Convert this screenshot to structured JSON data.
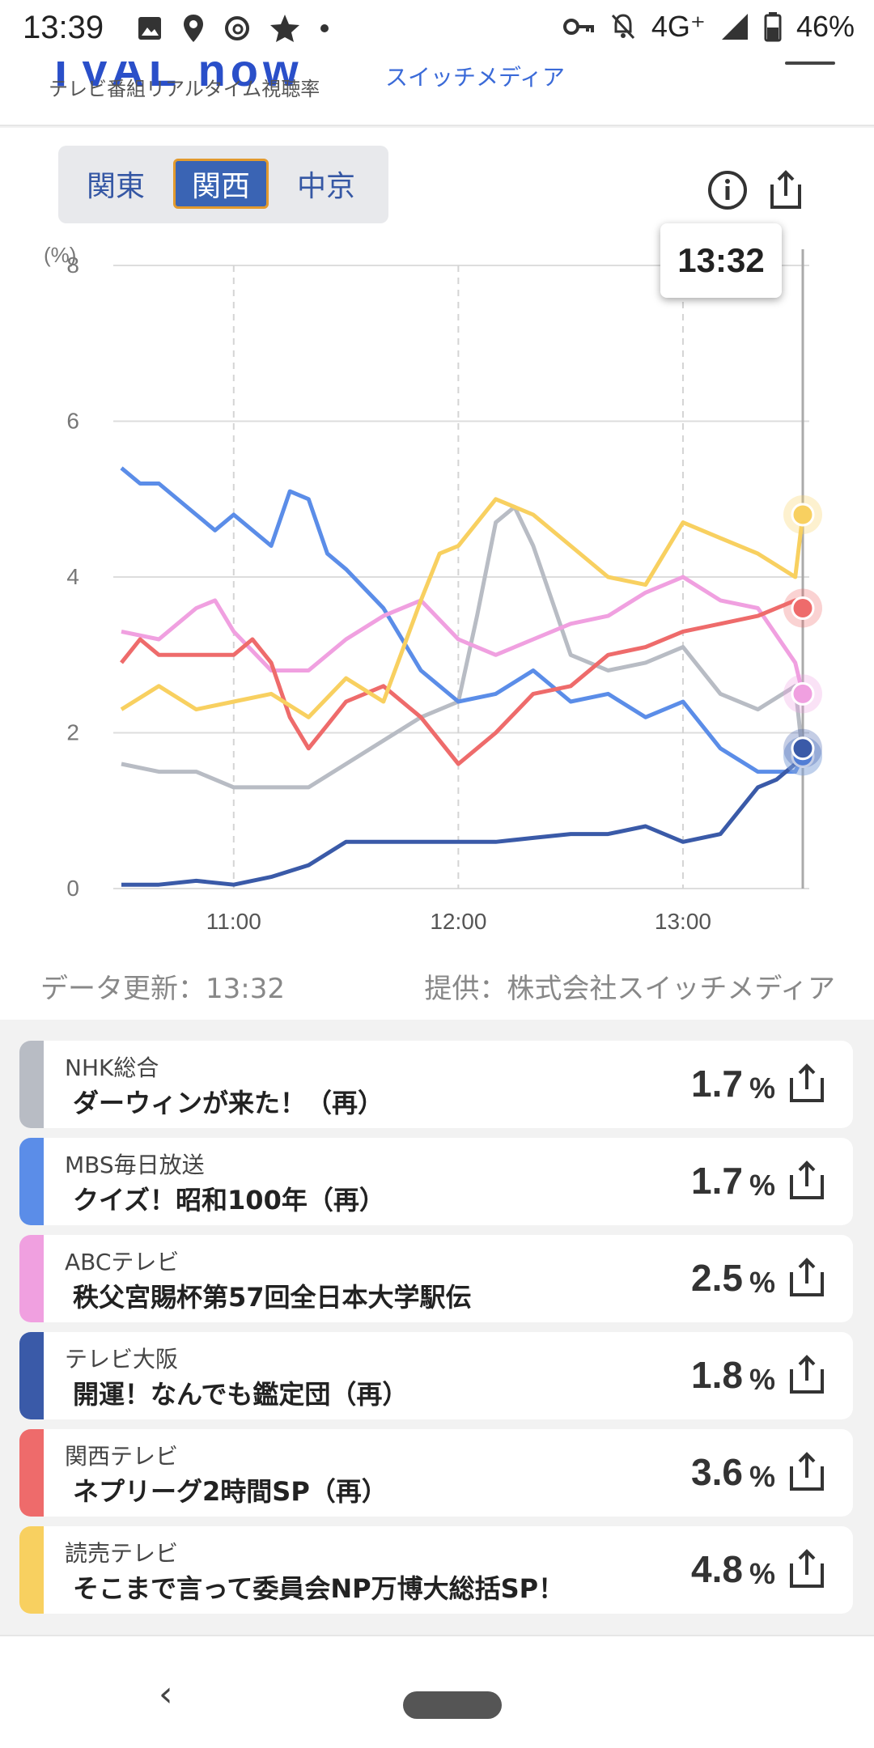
{
  "status_bar": {
    "time": "13:39",
    "network": "4G⁺",
    "battery": "46%",
    "left_icons": [
      "image-icon",
      "location-icon",
      "threads-icon",
      "star-icon",
      "dot-icon"
    ],
    "right_icons": [
      "key-icon",
      "bell-off-icon",
      "signal-icon",
      "battery-icon"
    ]
  },
  "header": {
    "logo_partial": "TVAL now",
    "subtitle": "テレビ番組リアルタイム視聴率",
    "brand_partial": "スイッチメディア"
  },
  "region_tabs": {
    "items": [
      "関東",
      "関西",
      "中京"
    ],
    "active": "関西"
  },
  "chart": {
    "tooltip_time": "13:32",
    "icons": [
      "info-icon",
      "share-icon"
    ],
    "update_label": "データ更新：13:32",
    "provider_label": "提供：株式会社スイッチメディア"
  },
  "chart_data": {
    "type": "line",
    "ylabel": "(%)",
    "ylim": [
      0,
      8
    ],
    "y_ticks": [
      "0",
      "2",
      "4",
      "6",
      "8"
    ],
    "x_ticks": [
      "11:00",
      "12:00",
      "13:00"
    ],
    "x_range_minutes": [
      -30,
      152
    ],
    "x_unit": "minutes relative to 11:00",
    "grid": true,
    "series": [
      {
        "name": "NHK総合",
        "color": "#b8bcc4",
        "x": [
          -30,
          -20,
          -10,
          0,
          10,
          20,
          30,
          40,
          50,
          60,
          65,
          70,
          75,
          80,
          90,
          100,
          110,
          120,
          130,
          140,
          150,
          152
        ],
        "values": [
          1.6,
          1.5,
          1.5,
          1.3,
          1.3,
          1.3,
          1.6,
          1.9,
          2.2,
          2.4,
          3.5,
          4.7,
          4.9,
          4.4,
          3.0,
          2.8,
          2.9,
          3.1,
          2.5,
          2.3,
          2.6,
          1.7
        ]
      },
      {
        "name": "MBS毎日放送",
        "color": "#5b8de8",
        "x": [
          -30,
          -25,
          -20,
          -10,
          -5,
          0,
          10,
          15,
          20,
          25,
          30,
          40,
          50,
          60,
          70,
          80,
          90,
          100,
          110,
          120,
          130,
          140,
          150,
          152
        ],
        "values": [
          5.4,
          5.2,
          5.2,
          4.8,
          4.6,
          4.8,
          4.4,
          5.1,
          5.0,
          4.3,
          4.1,
          3.6,
          2.8,
          2.4,
          2.5,
          2.8,
          2.4,
          2.5,
          2.2,
          2.4,
          1.8,
          1.5,
          1.5,
          1.7
        ]
      },
      {
        "name": "ABCテレビ",
        "color": "#f0a0e0",
        "x": [
          -30,
          -20,
          -10,
          -5,
          0,
          10,
          20,
          30,
          40,
          50,
          60,
          70,
          80,
          90,
          100,
          110,
          120,
          130,
          140,
          150,
          152
        ],
        "values": [
          3.3,
          3.2,
          3.6,
          3.7,
          3.3,
          2.8,
          2.8,
          3.2,
          3.5,
          3.7,
          3.2,
          3.0,
          3.2,
          3.4,
          3.5,
          3.8,
          4.0,
          3.7,
          3.6,
          2.9,
          2.5
        ]
      },
      {
        "name": "テレビ大阪",
        "color": "#3a5aa8",
        "x": [
          -30,
          -20,
          -10,
          0,
          10,
          20,
          30,
          40,
          50,
          60,
          70,
          80,
          90,
          100,
          110,
          120,
          130,
          140,
          145,
          150,
          152
        ],
        "values": [
          0.05,
          0.05,
          0.1,
          0.05,
          0.15,
          0.3,
          0.6,
          0.6,
          0.6,
          0.6,
          0.6,
          0.65,
          0.7,
          0.7,
          0.8,
          0.6,
          0.7,
          1.3,
          1.4,
          1.6,
          1.8
        ]
      },
      {
        "name": "関西テレビ",
        "color": "#ee6b6b",
        "x": [
          -30,
          -25,
          -20,
          -10,
          0,
          5,
          10,
          15,
          20,
          25,
          30,
          40,
          50,
          60,
          65,
          70,
          80,
          90,
          100,
          110,
          120,
          130,
          140,
          150,
          152
        ],
        "values": [
          2.9,
          3.2,
          3.0,
          3.0,
          3.0,
          3.2,
          2.9,
          2.2,
          1.8,
          2.1,
          2.4,
          2.6,
          2.2,
          1.6,
          1.8,
          2.0,
          2.5,
          2.6,
          3.0,
          3.1,
          3.3,
          3.4,
          3.5,
          3.7,
          3.6
        ]
      },
      {
        "name": "読売テレビ",
        "color": "#f8d060",
        "x": [
          -30,
          -20,
          -10,
          0,
          10,
          20,
          30,
          40,
          50,
          55,
          60,
          70,
          80,
          90,
          100,
          110,
          120,
          130,
          140,
          150,
          152
        ],
        "values": [
          2.3,
          2.6,
          2.3,
          2.4,
          2.5,
          2.2,
          2.7,
          2.4,
          3.7,
          4.3,
          4.4,
          5.0,
          4.8,
          4.4,
          4.0,
          3.9,
          4.7,
          4.5,
          4.3,
          4.0,
          4.8
        ]
      }
    ]
  },
  "ratings": [
    {
      "station": "NHK総合",
      "program": "ダーウィンが来た！（再）",
      "value": "1.7",
      "unit": "%",
      "color": "#b8bcc4"
    },
    {
      "station": "MBS毎日放送",
      "program": "クイズ！昭和100年（再）",
      "value": "1.7",
      "unit": "%",
      "color": "#5b8de8"
    },
    {
      "station": "ABCテレビ",
      "program": "秩父宮賜杯第57回全日本大学駅伝",
      "value": "2.5",
      "unit": "%",
      "color": "#f0a0e0"
    },
    {
      "station": "テレビ大阪",
      "program": "開運！なんでも鑑定団（再）",
      "value": "1.8",
      "unit": "%",
      "color": "#3a5aa8"
    },
    {
      "station": "関西テレビ",
      "program": "ネプリーグ2時間SP（再）",
      "value": "3.6",
      "unit": "%",
      "color": "#ee6b6b"
    },
    {
      "station": "読売テレビ",
      "program": "そこまで言って委員会NP万博大総括SP！",
      "value": "4.8",
      "unit": "%",
      "color": "#f8d060"
    }
  ],
  "nav": {
    "back_glyph": "‹"
  }
}
